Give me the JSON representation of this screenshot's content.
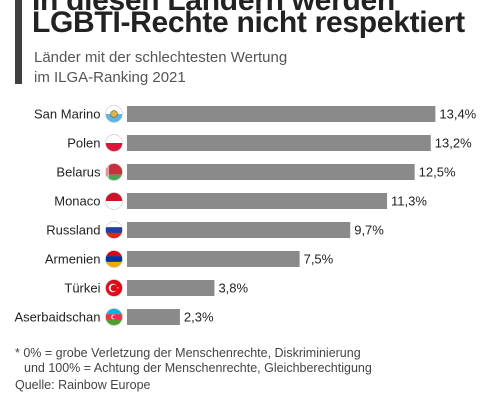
{
  "header": {
    "title_line1": "In diesen Ländern werden",
    "title_line2": "LGBTI-Rechte nicht respektiert",
    "subtitle_line1": "Länder mit der schlechtesten Wertung",
    "subtitle_line2": "im ILGA-Ranking 2021",
    "accent_color": "#3f3f3f"
  },
  "chart_data": {
    "type": "bar",
    "orientation": "horizontal",
    "categories": [
      "San Marino",
      "Polen",
      "Belarus",
      "Monaco",
      "Russland",
      "Armenien",
      "Türkei",
      "Aserbaidschan"
    ],
    "values": [
      13.4,
      13.2,
      12.5,
      11.3,
      9.7,
      7.5,
      3.8,
      2.3
    ],
    "value_labels": [
      "13,4%",
      "13,2%",
      "12,5%",
      "11,3%",
      "9,7%",
      "7,5%",
      "3,8%",
      "2,3%"
    ],
    "flag_icons": [
      "san-marino-flag-icon",
      "poland-flag-icon",
      "belarus-flag-icon",
      "monaco-flag-icon",
      "russia-flag-icon",
      "armenia-flag-icon",
      "turkey-flag-icon",
      "azerbaijan-flag-icon"
    ],
    "bar_color": "#8a8a8a",
    "xlim": [
      0,
      14.6
    ],
    "grid": false,
    "title": "",
    "xlabel": "",
    "ylabel": ""
  },
  "footer": {
    "note_line1": "* 0% = grobe Verletzung der Menschenrechte, Diskriminierung",
    "note_line2": "und 100% = Achtung der Menschenrechte, Gleichberechtigung",
    "source": "Quelle: Rainbow Europe"
  }
}
